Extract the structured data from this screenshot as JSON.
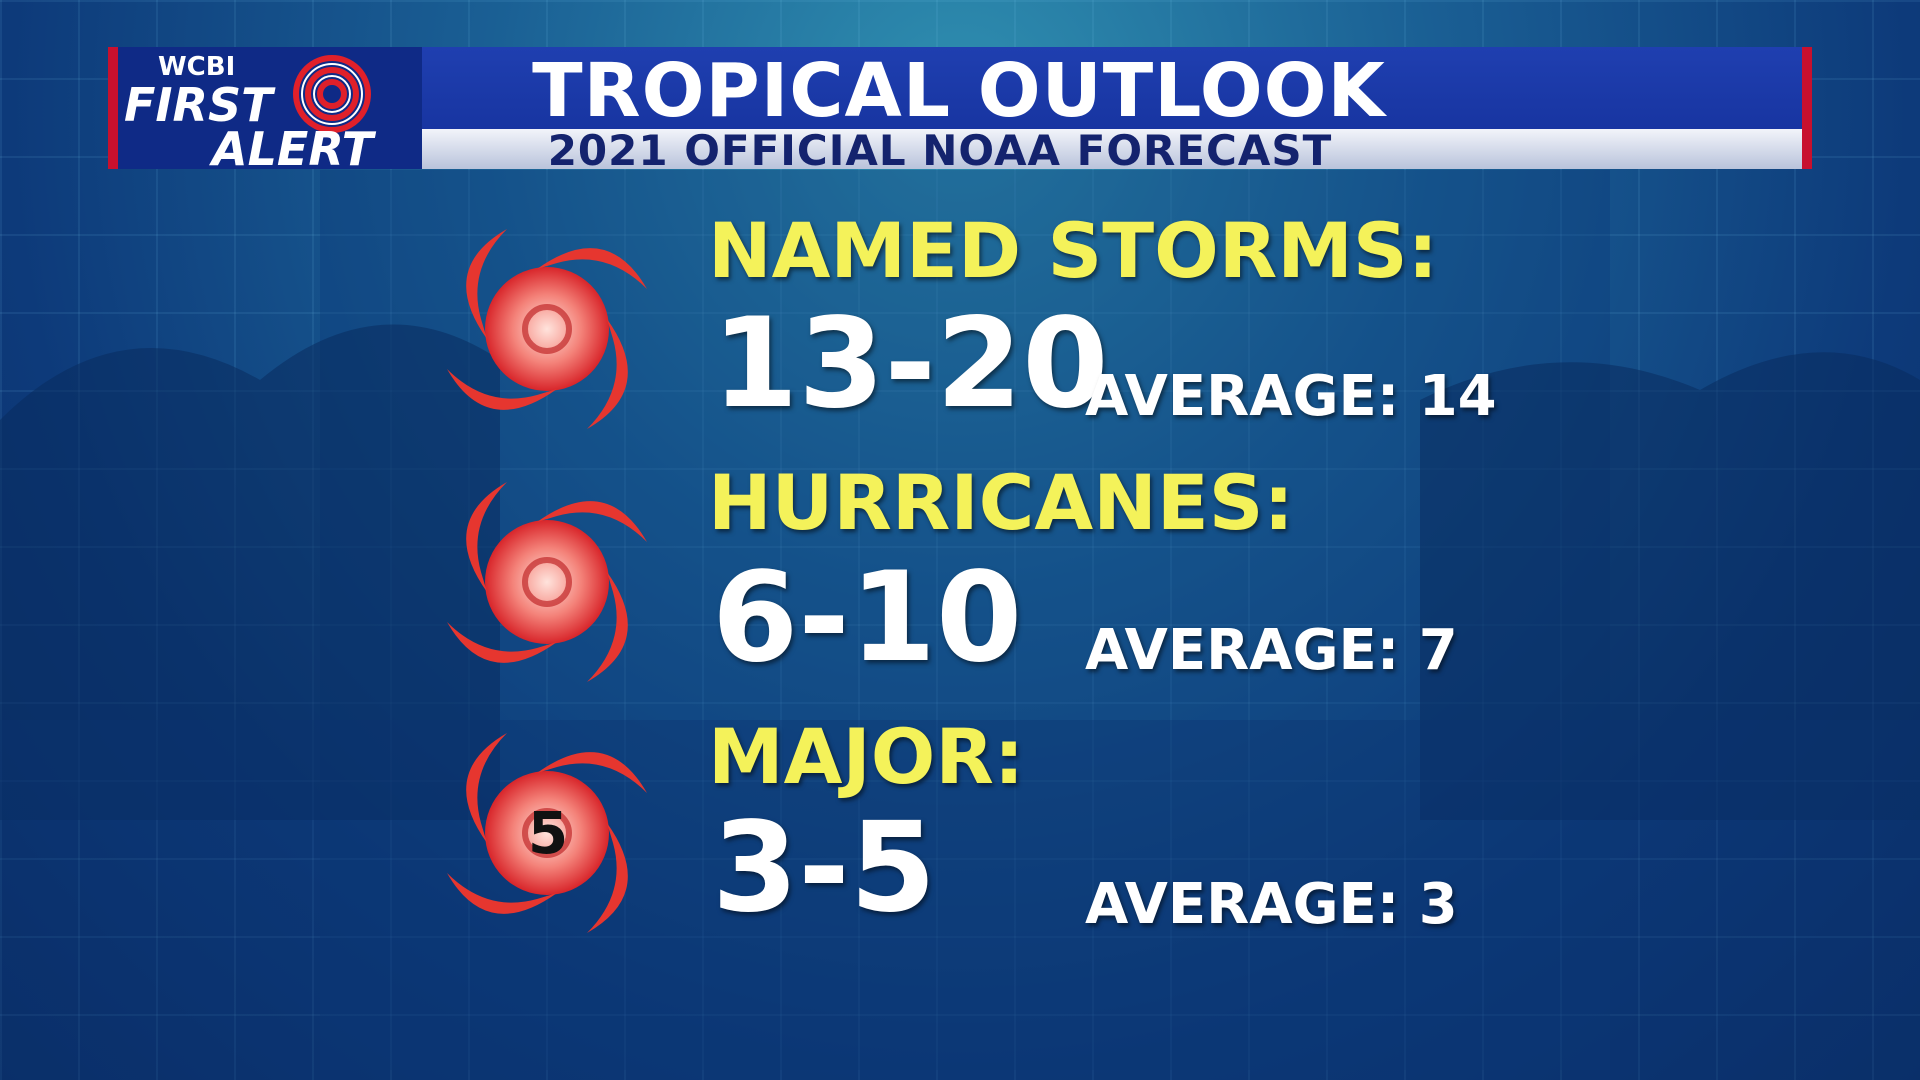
{
  "header": {
    "logo": {
      "line1": "WCBI",
      "line2": "FIRST",
      "line3": "ALERT"
    },
    "title": "TROPICAL OUTLOOK",
    "subtitle": "2021 OFFICIAL NOAA FORECAST"
  },
  "rows": [
    {
      "label": "NAMED STORMS:",
      "range": "13-20",
      "average": "AVERAGE: 14"
    },
    {
      "label": "HURRICANES:",
      "range": "6-10",
      "average": "AVERAGE: 7"
    },
    {
      "label": "MAJOR:",
      "range": "3-5",
      "average": "AVERAGE: 3",
      "icon_label": "5"
    }
  ]
}
